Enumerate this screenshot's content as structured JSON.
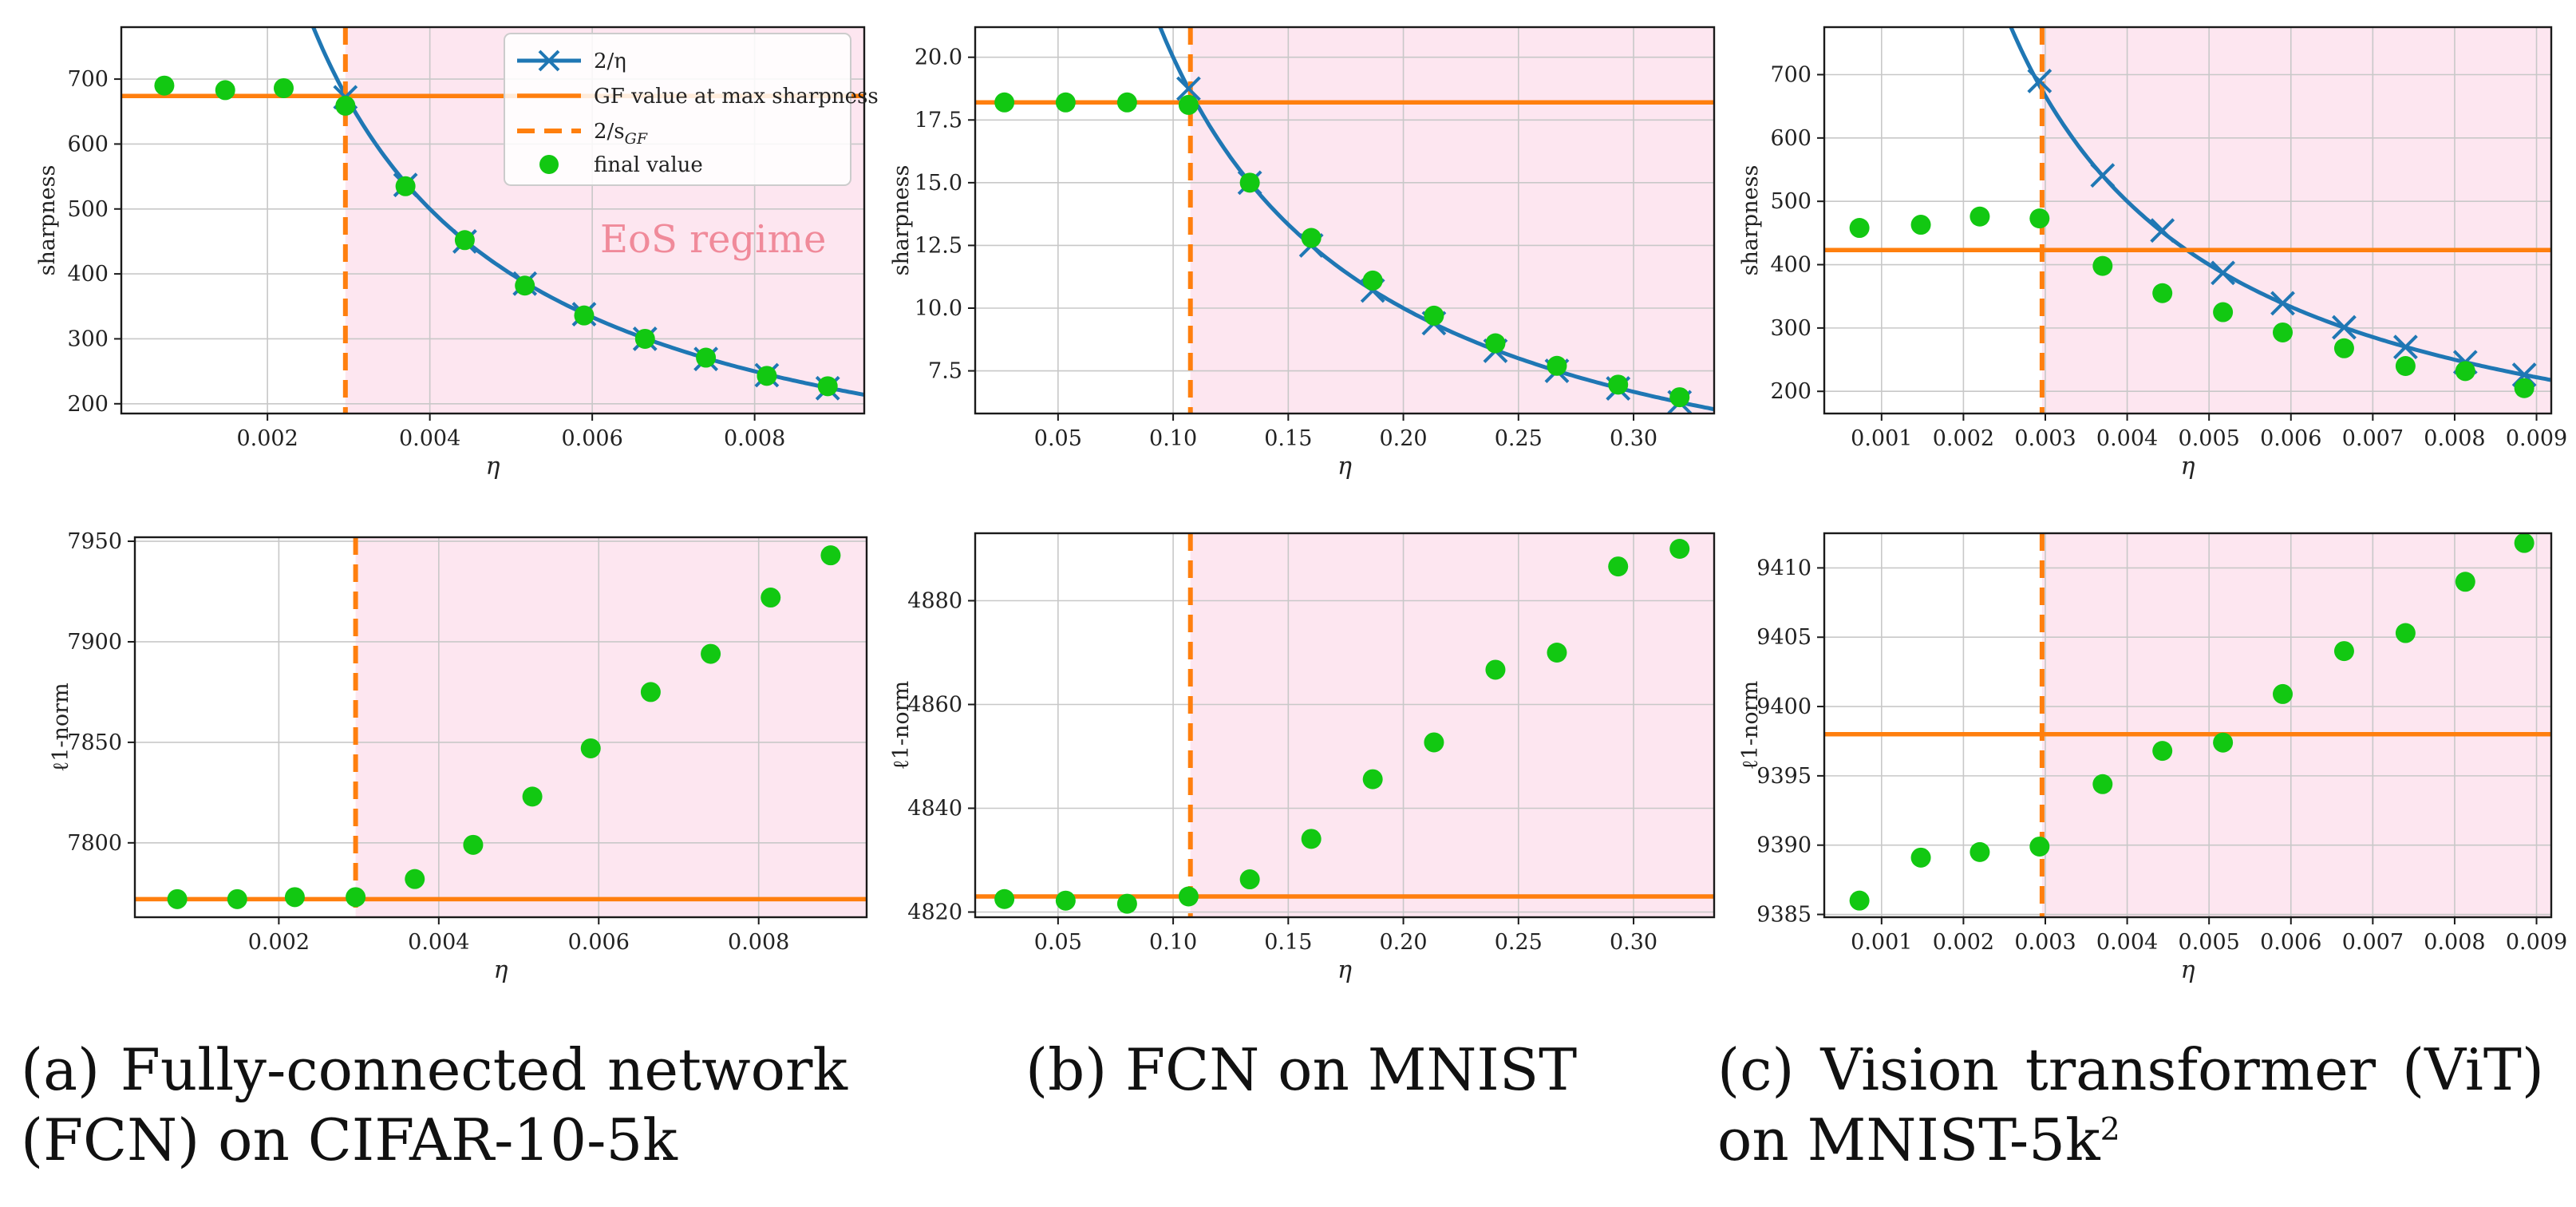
{
  "colors": {
    "curve": "#1f77b4",
    "orange": "#ff7f0e",
    "green": "#12c812",
    "eos_fill": "#fde6f0",
    "eos_text": "#f08a9a",
    "grid": "#c8c8c8"
  },
  "legend": {
    "items": [
      "2/η",
      "GF value at max sharpness",
      "2/s",
      "final value"
    ],
    "sgf_sub": "GF"
  },
  "eos_label": "EoS regime",
  "captions": {
    "a": {
      "line1": [
        "(a)",
        "Fully-connected",
        "network"
      ],
      "line2": "(FCN) on CIFAR-10-5k"
    },
    "b": {
      "line1": [
        "(b) FCN on MNIST"
      ],
      "line2": ""
    },
    "c": {
      "line1": [
        "(c)",
        "Vision",
        "transformer",
        "(ViT)"
      ],
      "line2": "on MNIST-5k",
      "sup": "2"
    }
  },
  "chart_data": [
    {
      "id": "a-sharpness",
      "type": "scatter",
      "xlabel": "η",
      "ylabel": "sharpness",
      "xlim": [
        0.0002,
        0.00935
      ],
      "ylim": [
        185,
        780
      ],
      "xticks": [
        0.002,
        0.004,
        0.006,
        0.008
      ],
      "xtick_labels": [
        "0.002",
        "0.004",
        "0.006",
        "0.008"
      ],
      "yticks": [
        200,
        300,
        400,
        500,
        600,
        700
      ],
      "ytick_labels": [
        "200",
        "300",
        "400",
        "500",
        "600",
        "700"
      ],
      "vline": 0.00296,
      "hline": 674,
      "curve": true,
      "legend": true,
      "eos_text": true,
      "points": [
        [
          0.00073,
          690
        ],
        [
          0.00148,
          683
        ],
        [
          0.0022,
          686
        ],
        [
          0.00296,
          659
        ],
        [
          0.0037,
          535
        ],
        [
          0.00443,
          452
        ],
        [
          0.00517,
          382
        ],
        [
          0.0059,
          336
        ],
        [
          0.00665,
          300
        ],
        [
          0.0074,
          271
        ],
        [
          0.00815,
          243
        ],
        [
          0.0089,
          227
        ]
      ],
      "crosses": [
        [
          0.00296,
          672
        ],
        [
          0.0037,
          537
        ],
        [
          0.00443,
          450
        ],
        [
          0.00517,
          385
        ],
        [
          0.0059,
          338
        ],
        [
          0.00665,
          300
        ],
        [
          0.0074,
          269
        ],
        [
          0.00815,
          244
        ],
        [
          0.0089,
          224
        ]
      ]
    },
    {
      "id": "b-sharpness",
      "type": "scatter",
      "xlabel": "η",
      "ylabel": "sharpness",
      "xlim": [
        0.014,
        0.335
      ],
      "ylim": [
        5.8,
        21.2
      ],
      "xticks": [
        0.05,
        0.1,
        0.15,
        0.2,
        0.25,
        0.3
      ],
      "xtick_labels": [
        "0.05",
        "0.10",
        "0.15",
        "0.20",
        "0.25",
        "0.30"
      ],
      "yticks": [
        7.5,
        10.0,
        12.5,
        15.0,
        17.5,
        20.0
      ],
      "ytick_labels": [
        "7.5",
        "10.0",
        "12.5",
        "15.0",
        "17.5",
        "20.0"
      ],
      "vline": 0.1075,
      "hline": 18.2,
      "curve": true,
      "points": [
        [
          0.0267,
          18.2
        ],
        [
          0.0533,
          18.2
        ],
        [
          0.08,
          18.2
        ],
        [
          0.1067,
          18.1
        ],
        [
          0.1333,
          15.0
        ],
        [
          0.16,
          12.8
        ],
        [
          0.1867,
          11.1
        ],
        [
          0.2133,
          9.7
        ],
        [
          0.24,
          8.6
        ],
        [
          0.2667,
          7.7
        ],
        [
          0.2933,
          6.95
        ],
        [
          0.32,
          6.45
        ]
      ],
      "crosses": [
        [
          0.1067,
          18.75
        ],
        [
          0.1333,
          15.0
        ],
        [
          0.16,
          12.5
        ],
        [
          0.1867,
          10.7
        ],
        [
          0.2133,
          9.4
        ],
        [
          0.24,
          8.3
        ],
        [
          0.2667,
          7.5
        ],
        [
          0.2933,
          6.8
        ],
        [
          0.32,
          6.25
        ]
      ]
    },
    {
      "id": "c-sharpness",
      "type": "scatter",
      "xlabel": "η",
      "ylabel": "sharpness",
      "xlim": [
        0.0003,
        0.00918
      ],
      "ylim": [
        165,
        775
      ],
      "xticks": [
        0.001,
        0.002,
        0.003,
        0.004,
        0.005,
        0.006,
        0.007,
        0.008,
        0.009
      ],
      "xtick_labels": [
        "0.001",
        "0.002",
        "0.003",
        "0.004",
        "0.005",
        "0.006",
        "0.007",
        "0.008",
        "0.009"
      ],
      "yticks": [
        200,
        300,
        400,
        500,
        600,
        700
      ],
      "ytick_labels": [
        "200",
        "300",
        "400",
        "500",
        "600",
        "700"
      ],
      "vline": 0.00296,
      "hline": 423,
      "curve": true,
      "points": [
        [
          0.00073,
          458
        ],
        [
          0.00148,
          463
        ],
        [
          0.0022,
          476
        ],
        [
          0.00293,
          473
        ],
        [
          0.0037,
          398
        ],
        [
          0.00443,
          355
        ],
        [
          0.00517,
          325
        ],
        [
          0.0059,
          293
        ],
        [
          0.00665,
          268
        ],
        [
          0.0074,
          240
        ],
        [
          0.00813,
          232
        ],
        [
          0.00885,
          205
        ]
      ],
      "crosses": [
        [
          0.00293,
          690
        ],
        [
          0.0037,
          541
        ],
        [
          0.00443,
          454
        ],
        [
          0.00517,
          387
        ],
        [
          0.0059,
          339
        ],
        [
          0.00665,
          301
        ],
        [
          0.0074,
          270
        ],
        [
          0.00813,
          246
        ],
        [
          0.00885,
          226
        ]
      ]
    },
    {
      "id": "a-l1norm",
      "type": "scatter",
      "xlabel": "η",
      "ylabel": "ℓ1-norm",
      "xlim": [
        0.0002,
        0.00935
      ],
      "ylim": [
        7763,
        7952
      ],
      "xticks": [
        0.002,
        0.004,
        0.006,
        0.008
      ],
      "xtick_labels": [
        "0.002",
        "0.004",
        "0.006",
        "0.008"
      ],
      "yticks": [
        7800,
        7850,
        7900,
        7950
      ],
      "ytick_labels": [
        "7800",
        "7850",
        "7900",
        "7950"
      ],
      "vline": 0.00296,
      "hline": 7772,
      "curve": false,
      "points": [
        [
          0.00073,
          7772
        ],
        [
          0.00148,
          7772
        ],
        [
          0.0022,
          7773
        ],
        [
          0.00296,
          7773
        ],
        [
          0.0037,
          7782
        ],
        [
          0.00443,
          7799
        ],
        [
          0.00517,
          7823
        ],
        [
          0.0059,
          7847
        ],
        [
          0.00665,
          7875
        ],
        [
          0.0074,
          7894
        ],
        [
          0.00815,
          7922
        ],
        [
          0.0089,
          7943
        ]
      ],
      "crosses": []
    },
    {
      "id": "b-l1norm",
      "type": "scatter",
      "xlabel": "η",
      "ylabel": "ℓ1-norm",
      "xlim": [
        0.014,
        0.335
      ],
      "ylim": [
        4819,
        4893
      ],
      "xticks": [
        0.05,
        0.1,
        0.15,
        0.2,
        0.25,
        0.3
      ],
      "xtick_labels": [
        "0.05",
        "0.10",
        "0.15",
        "0.20",
        "0.25",
        "0.30"
      ],
      "yticks": [
        4820,
        4840,
        4860,
        4880
      ],
      "ytick_labels": [
        "4820",
        "4840",
        "4860",
        "4880"
      ],
      "vline": 0.1075,
      "hline": 4823,
      "curve": false,
      "points": [
        [
          0.0267,
          4822.5
        ],
        [
          0.0533,
          4822.2
        ],
        [
          0.08,
          4821.6
        ],
        [
          0.1067,
          4823
        ],
        [
          0.1333,
          4826.3
        ],
        [
          0.16,
          4834.1
        ],
        [
          0.1867,
          4845.6
        ],
        [
          0.2133,
          4852.7
        ],
        [
          0.24,
          4866.7
        ],
        [
          0.2667,
          4870
        ],
        [
          0.2933,
          4886.6
        ],
        [
          0.32,
          4890
        ]
      ],
      "crosses": []
    },
    {
      "id": "c-l1norm",
      "type": "scatter",
      "xlabel": "η",
      "ylabel": "ℓ1-norm",
      "xlim": [
        0.0003,
        0.00918
      ],
      "ylim": [
        9384.8,
        9412.5
      ],
      "xticks": [
        0.001,
        0.002,
        0.003,
        0.004,
        0.005,
        0.006,
        0.007,
        0.008,
        0.009
      ],
      "xtick_labels": [
        "0.001",
        "0.002",
        "0.003",
        "0.004",
        "0.005",
        "0.006",
        "0.007",
        "0.008",
        "0.009"
      ],
      "yticks": [
        9385,
        9390,
        9395,
        9400,
        9405,
        9410
      ],
      "ytick_labels": [
        "9385",
        "9390",
        "9395",
        "9400",
        "9405",
        "9410"
      ],
      "vline": 0.00296,
      "hline": 9398,
      "curve": false,
      "points": [
        [
          0.00073,
          9386
        ],
        [
          0.00148,
          9389.1
        ],
        [
          0.0022,
          9389.5
        ],
        [
          0.00293,
          9389.9
        ],
        [
          0.0037,
          9394.4
        ],
        [
          0.00443,
          9396.8
        ],
        [
          0.00517,
          9397.4
        ],
        [
          0.0059,
          9400.9
        ],
        [
          0.00665,
          9404
        ],
        [
          0.0074,
          9405.3
        ],
        [
          0.00813,
          9409
        ],
        [
          0.00885,
          9411.8
        ]
      ],
      "crosses": []
    }
  ]
}
